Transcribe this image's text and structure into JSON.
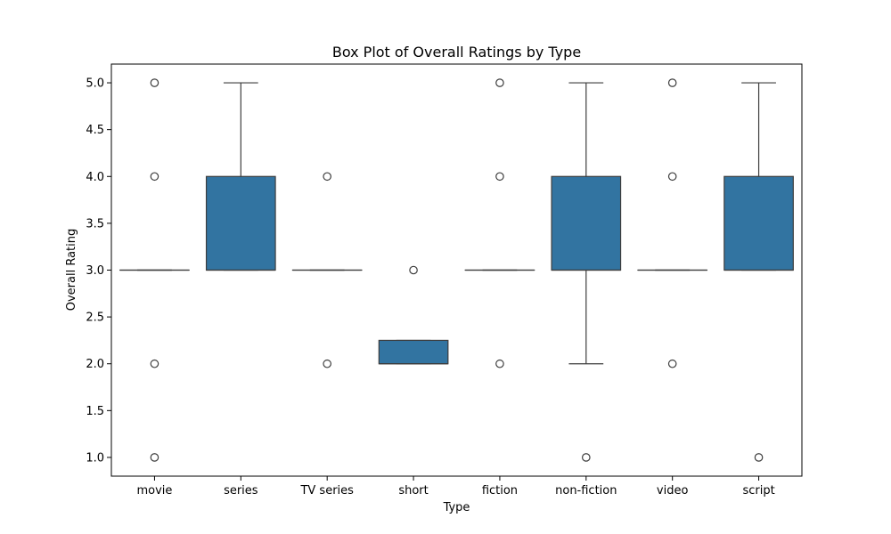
{
  "chart_data": {
    "type": "box",
    "title": "Box Plot of Overall Ratings by Type",
    "xlabel": "Type",
    "ylabel": "Overall Rating",
    "ylim": [
      0.8,
      5.2
    ],
    "yticks": [
      "1.0",
      "1.5",
      "2.0",
      "2.5",
      "3.0",
      "3.5",
      "4.0",
      "4.5",
      "5.0"
    ],
    "grid": false,
    "box_color": "#3274a1",
    "edge_color": "#3d3d3d",
    "categories": [
      "movie",
      "series",
      "TV series",
      "short",
      "fiction",
      "non-fiction",
      "video",
      "script"
    ],
    "boxes": [
      {
        "category": "movie",
        "whislo": 3.0,
        "q1": 3.0,
        "med": 3.0,
        "q3": 3.0,
        "whishi": 3.0,
        "fliers": [
          1.0,
          2.0,
          4.0,
          5.0
        ]
      },
      {
        "category": "series",
        "whislo": 3.0,
        "q1": 3.0,
        "med": 3.0,
        "q3": 4.0,
        "whishi": 5.0,
        "fliers": []
      },
      {
        "category": "TV series",
        "whislo": 3.0,
        "q1": 3.0,
        "med": 3.0,
        "q3": 3.0,
        "whishi": 3.0,
        "fliers": [
          2.0,
          4.0
        ]
      },
      {
        "category": "short",
        "whislo": 2.0,
        "q1": 2.0,
        "med": 2.0,
        "q3": 2.25,
        "whishi": 2.25,
        "fliers": [
          3.0
        ]
      },
      {
        "category": "fiction",
        "whislo": 3.0,
        "q1": 3.0,
        "med": 3.0,
        "q3": 3.0,
        "whishi": 3.0,
        "fliers": [
          2.0,
          4.0,
          5.0
        ]
      },
      {
        "category": "non-fiction",
        "whislo": 2.0,
        "q1": 3.0,
        "med": 3.0,
        "q3": 4.0,
        "whishi": 5.0,
        "fliers": [
          1.0
        ]
      },
      {
        "category": "video",
        "whislo": 3.0,
        "q1": 3.0,
        "med": 3.0,
        "q3": 3.0,
        "whishi": 3.0,
        "fliers": [
          2.0,
          4.0,
          5.0
        ]
      },
      {
        "category": "script",
        "whislo": 3.0,
        "q1": 3.0,
        "med": 3.0,
        "q3": 4.0,
        "whishi": 5.0,
        "fliers": [
          1.0
        ]
      }
    ]
  }
}
